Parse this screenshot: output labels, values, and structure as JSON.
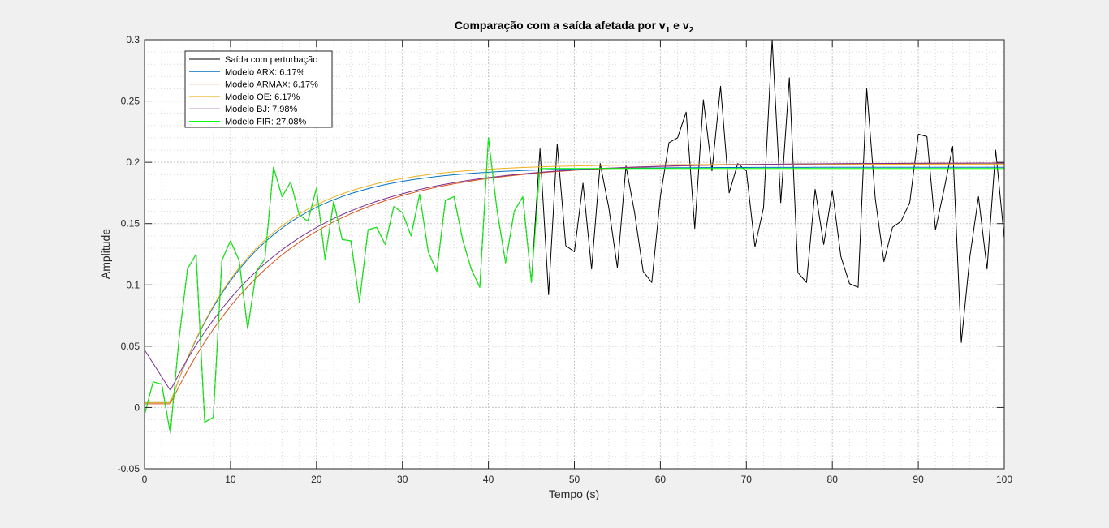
{
  "chart_data": {
    "type": "line",
    "title": {
      "main": "Comparação com a saída afetada por v",
      "sub1": "1",
      "mid": " e v",
      "sub2": "2"
    },
    "xlabel": "Tempo (s)",
    "ylabel": "Amplitude",
    "xlim": [
      0,
      100
    ],
    "ylim": [
      -0.05,
      0.3
    ],
    "xticks": [
      0,
      10,
      20,
      30,
      40,
      50,
      60,
      70,
      80,
      90,
      100
    ],
    "yticks": [
      -0.05,
      0,
      0.05,
      0.1,
      0.15,
      0.2,
      0.25,
      0.3
    ],
    "ytick_labels": [
      "-0.05",
      "0",
      "0.05",
      "0.1",
      "0.15",
      "0.2",
      "0.25",
      "0.3"
    ],
    "grid": true,
    "minor_grid": true,
    "legend_position": "top-left",
    "x": [
      0,
      1,
      2,
      3,
      4,
      5,
      6,
      7,
      8,
      9,
      10,
      11,
      12,
      13,
      14,
      15,
      16,
      17,
      18,
      19,
      20,
      21,
      22,
      23,
      24,
      25,
      26,
      27,
      28,
      29,
      30,
      31,
      32,
      33,
      34,
      35,
      36,
      37,
      38,
      39,
      40,
      41,
      42,
      43,
      44,
      45,
      46,
      47,
      48,
      49,
      50,
      51,
      52,
      53,
      54,
      55,
      56,
      57,
      58,
      59,
      60,
      61,
      62,
      63,
      64,
      65,
      66,
      67,
      68,
      69,
      70,
      71,
      72,
      73,
      74,
      75,
      76,
      77,
      78,
      79,
      80,
      81,
      82,
      83,
      84,
      85,
      86,
      87,
      88,
      89,
      90,
      91,
      92,
      93,
      94,
      95,
      96,
      97,
      98,
      99,
      100
    ],
    "series": [
      {
        "name": "Saída com perturbação",
        "color": "#000000",
        "values": [
          -0.006,
          0.021,
          0.019,
          -0.021,
          0.055,
          0.113,
          0.125,
          -0.012,
          -0.008,
          0.12,
          0.136,
          0.12,
          0.064,
          0.111,
          0.121,
          0.196,
          0.172,
          0.184,
          0.157,
          0.152,
          0.179,
          0.121,
          0.168,
          0.137,
          0.136,
          0.086,
          0.145,
          0.147,
          0.133,
          0.164,
          0.159,
          0.14,
          0.174,
          0.127,
          0.111,
          0.169,
          0.172,
          0.137,
          0.113,
          0.098,
          0.22,
          0.161,
          0.118,
          0.16,
          0.172,
          0.102,
          0.211,
          0.092,
          0.215,
          0.132,
          0.127,
          0.183,
          0.113,
          0.199,
          0.163,
          0.114,
          0.197,
          0.159,
          0.111,
          0.102,
          0.172,
          0.216,
          0.22,
          0.241,
          0.146,
          0.251,
          0.193,
          0.262,
          0.175,
          0.199,
          0.193,
          0.131,
          0.163,
          0.3,
          0.167,
          0.269,
          0.11,
          0.102,
          0.178,
          0.133,
          0.177,
          0.123,
          0.101,
          0.098,
          0.26,
          0.17,
          0.119,
          0.147,
          0.152,
          0.167,
          0.223,
          0.221,
          0.145,
          0.178,
          0.213,
          0.053,
          0.123,
          0.172,
          0.113,
          0.21,
          0.138
        ]
      },
      {
        "name": "Modelo ARX: 6.17%",
        "color": "#0072bd",
        "model": "first_order",
        "params": {
          "y0": 0.004,
          "delay": 3,
          "gain": 0.196,
          "tau": 9.6
        }
      },
      {
        "name": "Modelo ARMAX: 6.17%",
        "color": "#d95319",
        "model": "first_order",
        "params": {
          "y0": 0.003,
          "delay": 3,
          "gain": 0.1995,
          "tau": 13.5
        }
      },
      {
        "name": "Modelo OE: 6.17%",
        "color": "#edb120",
        "model": "first_order",
        "params": {
          "y0": 0.004,
          "delay": 3,
          "gain": 0.1985,
          "tau": 9.6
        }
      },
      {
        "name": "Modelo BJ: 7.98%",
        "color": "#7e2f8e",
        "model": "first_order_start",
        "params": {
          "start": 0.047,
          "valley": 0.014,
          "delay": 3,
          "gain": 0.1995,
          "tau": 13.5
        }
      },
      {
        "name": "Modelo FIR: 27.08%",
        "color": "#00ff00",
        "values": [
          -0.006,
          0.021,
          0.019,
          -0.021,
          0.055,
          0.113,
          0.125,
          -0.012,
          -0.008,
          0.12,
          0.136,
          0.12,
          0.064,
          0.111,
          0.121,
          0.196,
          0.172,
          0.184,
          0.157,
          0.152,
          0.179,
          0.121,
          0.168,
          0.137,
          0.136,
          0.086,
          0.145,
          0.147,
          0.133,
          0.164,
          0.159,
          0.14,
          0.174,
          0.127,
          0.111,
          0.169,
          0.172,
          0.137,
          0.113,
          0.098,
          0.22,
          0.161,
          0.118,
          0.16,
          0.172,
          0.102,
          0.195,
          0.195,
          0.195,
          0.195,
          0.195,
          0.195,
          0.195,
          0.195,
          0.195,
          0.195,
          0.195,
          0.195,
          0.195,
          0.195,
          0.195,
          0.195,
          0.195,
          0.195,
          0.195,
          0.195,
          0.195,
          0.195,
          0.195,
          0.195,
          0.195,
          0.195,
          0.195,
          0.195,
          0.195,
          0.195,
          0.195,
          0.195,
          0.195,
          0.195,
          0.195,
          0.195,
          0.195,
          0.195,
          0.195,
          0.195,
          0.195,
          0.195,
          0.195,
          0.195,
          0.195,
          0.195,
          0.195,
          0.195,
          0.195,
          0.195,
          0.195,
          0.195,
          0.195,
          0.195,
          0.195
        ]
      }
    ]
  }
}
